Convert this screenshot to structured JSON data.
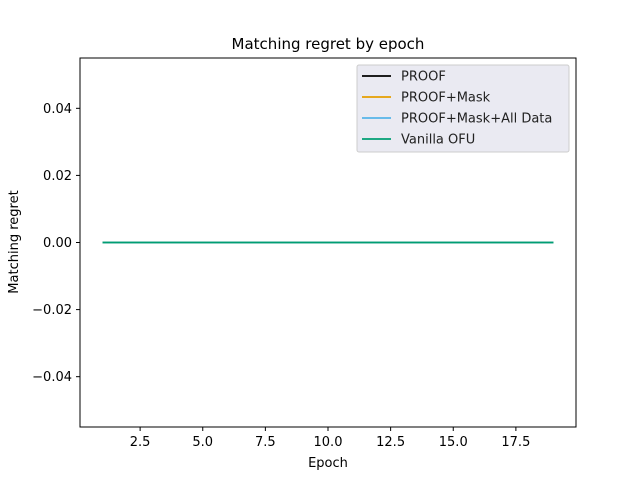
{
  "chart_data": {
    "type": "line",
    "title": "Matching regret by epoch",
    "xlabel": "Epoch",
    "ylabel": "Matching regret",
    "xlim": [
      0.1,
      19.9
    ],
    "ylim": [
      -0.055,
      0.055
    ],
    "xticks": [
      2.5,
      5.0,
      7.5,
      10.0,
      12.5,
      15.0,
      17.5
    ],
    "xtick_labels": [
      "2.5",
      "5.0",
      "7.5",
      "10.0",
      "12.5",
      "15.0",
      "17.5"
    ],
    "yticks": [
      -0.04,
      -0.02,
      0.0,
      0.02,
      0.04
    ],
    "ytick_labels": [
      "−0.04",
      "−0.02",
      "0.00",
      "0.02",
      "0.04"
    ],
    "grid": false,
    "legend_position": "top-right",
    "x": [
      1,
      2,
      3,
      4,
      5,
      6,
      7,
      8,
      9,
      10,
      11,
      12,
      13,
      14,
      15,
      16,
      17,
      18,
      19
    ],
    "series": [
      {
        "name": "PROOF",
        "color": "#000000",
        "values": [
          0,
          0,
          0,
          0,
          0,
          0,
          0,
          0,
          0,
          0,
          0,
          0,
          0,
          0,
          0,
          0,
          0,
          0,
          0
        ]
      },
      {
        "name": "PROOF+Mask",
        "color": "#e69f00",
        "values": [
          0,
          0,
          0,
          0,
          0,
          0,
          0,
          0,
          0,
          0,
          0,
          0,
          0,
          0,
          0,
          0,
          0,
          0,
          0
        ]
      },
      {
        "name": "PROOF+Mask+All Data",
        "color": "#56b4e9",
        "values": [
          0,
          0,
          0,
          0,
          0,
          0,
          0,
          0,
          0,
          0,
          0,
          0,
          0,
          0,
          0,
          0,
          0,
          0,
          0
        ]
      },
      {
        "name": "Vanilla OFU",
        "color": "#009e73",
        "values": [
          0,
          0,
          0,
          0,
          0,
          0,
          0,
          0,
          0,
          0,
          0,
          0,
          0,
          0,
          0,
          0,
          0,
          0,
          0
        ]
      }
    ]
  }
}
